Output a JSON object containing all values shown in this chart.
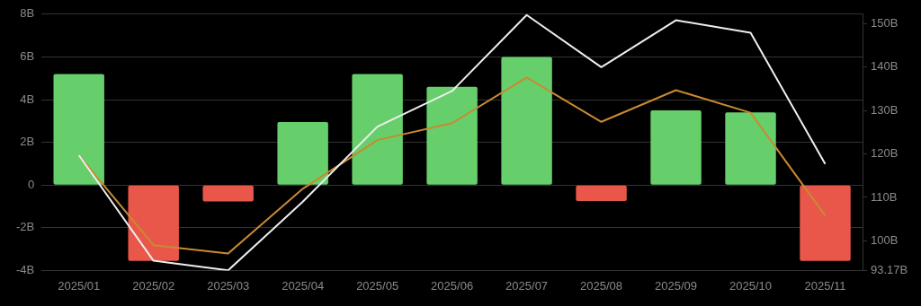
{
  "chart_data": {
    "type": "bar",
    "categories": [
      "2025/01",
      "2025/02",
      "2025/03",
      "2025/04",
      "2025/05",
      "2025/06",
      "2025/07",
      "2025/08",
      "2025/09",
      "2025/10",
      "2025/11"
    ],
    "series": [
      {
        "colors": [
          "#66cf6b",
          "#e9574a",
          "#e9574a",
          "#66cf6b",
          "#66cf6b",
          "#66cf6b",
          "#66cf6b",
          "#e9574a",
          "#66cf6b",
          "#66cf6b",
          "#e9574a"
        ],
        "values": [
          5.2,
          -3.55,
          -0.77,
          2.95,
          5.2,
          4.6,
          6.0,
          -0.75,
          3.5,
          3.4,
          -3.55
        ]
      },
      {
        "type": "line",
        "axis": "y2",
        "color": "#eeeeee",
        "values": [
          119.7,
          95.4,
          93.2,
          109.0,
          126.3,
          134.5,
          152.0,
          140.0,
          150.8,
          147.9,
          117.7
        ]
      },
      {
        "type": "line",
        "axis": "y2",
        "color": "#c98a30",
        "values": [
          119.7,
          99.0,
          97.1,
          112.0,
          123.2,
          127.1,
          137.6,
          127.4,
          134.7,
          129.5,
          105.8
        ]
      }
    ],
    "ylim": [
      -4,
      8
    ],
    "yticks": [
      {
        "value": -4,
        "label": "-4B"
      },
      {
        "value": -2,
        "label": "-2B"
      },
      0,
      {
        "value": 2,
        "label": "2B"
      },
      {
        "value": 4,
        "label": "4B"
      },
      {
        "value": 6,
        "label": "6B"
      },
      {
        "value": 8,
        "label": "8B"
      }
    ],
    "y2lim": [
      93.17,
      152.2
    ],
    "y2ticks": [
      {
        "value": 93.17,
        "label": "93.17B"
      },
      {
        "value": 100,
        "label": "100B"
      },
      {
        "value": 110,
        "label": "110B"
      },
      {
        "value": 120,
        "label": "120B"
      },
      {
        "value": 130,
        "label": "130B"
      },
      {
        "value": 140,
        "label": "140B"
      },
      {
        "value": 150,
        "label": "150B"
      }
    ],
    "grid": "y",
    "legend": false,
    "marker": "none",
    "line_style": "solid"
  }
}
